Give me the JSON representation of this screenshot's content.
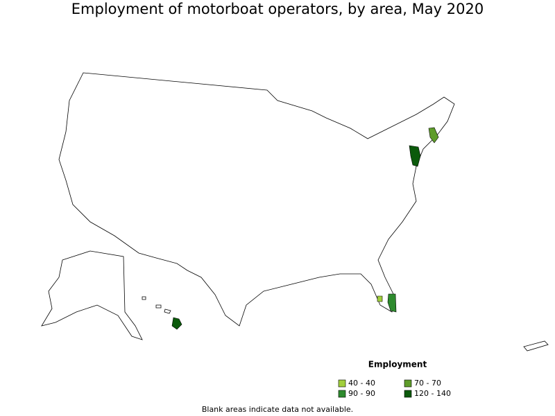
{
  "header": {
    "title": "Employment of motorboat operators, by area, May 2020"
  },
  "legend": {
    "title": "Employment",
    "items": [
      {
        "label": "40 - 40",
        "color": "#a1cf3c"
      },
      {
        "label": "70 - 70",
        "color": "#5e9c2a"
      },
      {
        "label": "90 - 90",
        "color": "#2e8b2e"
      },
      {
        "label": "120 - 140",
        "color": "#0b5a0b"
      }
    ]
  },
  "footnote": "Blank areas indicate data not available."
}
